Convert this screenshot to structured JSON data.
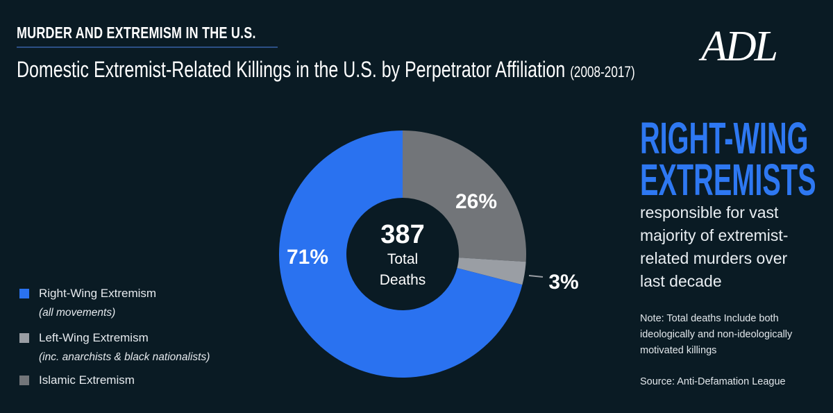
{
  "header": {
    "kicker": "MURDER AND EXTREMISM IN THE U.S.",
    "title": "Domestic Extremist-Related Killings in the U.S. by Perpetrator Affiliation",
    "years": "(2008-2017)",
    "logo": "ADL"
  },
  "chart_data": {
    "type": "pie",
    "title": "Domestic Extremist-Related Killings in the U.S. by Perpetrator Affiliation (2008-2017)",
    "center_value": "387",
    "center_label_1": "Total",
    "center_label_2": "Deaths",
    "slices": [
      {
        "name": "Islamic Extremism",
        "value": 26,
        "label": "26%",
        "color": "#727579"
      },
      {
        "name": "Left-Wing Extremism",
        "value": 3,
        "label": "3%",
        "color": "#9a9ea4"
      },
      {
        "name": "Right-Wing Extremism",
        "value": 71,
        "label": "71%",
        "color": "#2a72f0"
      }
    ],
    "legend": [
      {
        "label": "Right-Wing Extremism",
        "sub": "(all movements)",
        "color": "#2a72f0"
      },
      {
        "label": "Left-Wing Extremism",
        "sub": "(inc. anarchists & black nationalists)",
        "color": "#9a9ea4"
      },
      {
        "label": "Islamic Extremism",
        "sub": "",
        "color": "#727579"
      }
    ],
    "legend_position": "bottom-left"
  },
  "callout": {
    "headline_1": "RIGHT-WING",
    "headline_2": "EXTREMISTS",
    "body": [
      "responsible for vast",
      "majority of extremist-",
      "related murders over",
      "last decade"
    ],
    "note": [
      "Note: Total deaths Include both",
      "ideologically and non-ideologically",
      "motivated killings"
    ],
    "source": "Source: Anti-Defamation League"
  }
}
